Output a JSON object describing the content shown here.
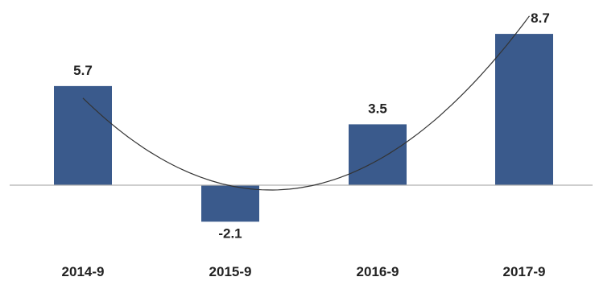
{
  "chart_data": {
    "type": "bar",
    "categories": [
      "2014-9",
      "2015-9",
      "2016-9",
      "2017-9"
    ],
    "values": [
      5.7,
      -2.1,
      3.5,
      8.7
    ],
    "data_labels": [
      "5.7",
      "-2.1",
      "3.5",
      "8.7"
    ],
    "ylim": [
      -3.5,
      11.5
    ],
    "trendline": "polynomial",
    "grid": false,
    "legend": "none",
    "colors": {
      "bar": "#3a5a8c",
      "trend": "#333333",
      "axis": "#b0b0b0"
    }
  }
}
